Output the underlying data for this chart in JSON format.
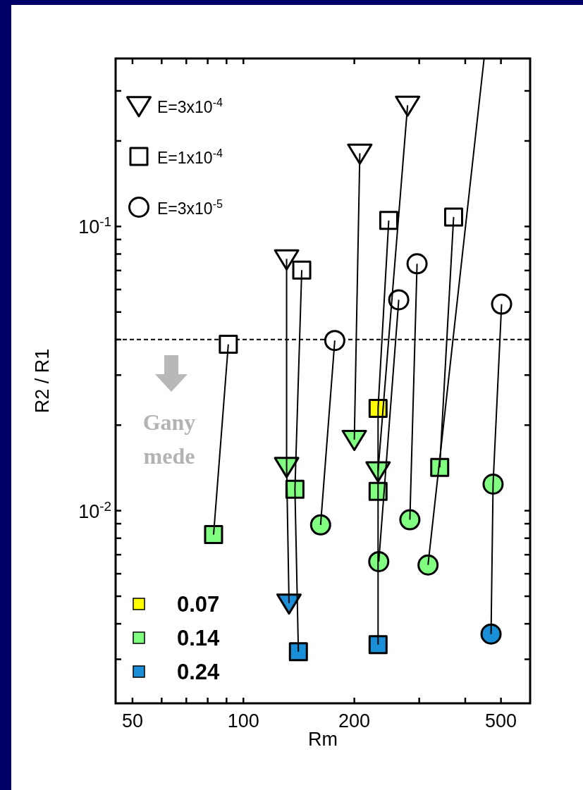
{
  "chart_data": {
    "type": "scatter",
    "xlabel": "Rm",
    "ylabel": "R2 / R1",
    "log": "xy",
    "legend": "left",
    "xlim": [
      45,
      600
    ],
    "ylim": [
      0.0021,
      0.39
    ],
    "xticks": [
      50,
      {
        "value": 60,
        "label": null
      },
      {
        "value": 70,
        "label": null
      },
      {
        "value": 80,
        "label": null
      },
      {
        "value": 90,
        "label": null
      },
      100,
      200,
      {
        "value": 300,
        "label": null
      },
      {
        "value": 400,
        "label": null
      },
      500
    ],
    "yticks": [
      {
        "value": 0.003,
        "label": null
      },
      {
        "value": 0.004,
        "label": null
      },
      {
        "value": 0.005,
        "label": null
      },
      {
        "value": 0.006,
        "label": null
      },
      {
        "value": 0.007,
        "label": null
      },
      {
        "value": 0.008,
        "label": null
      },
      {
        "value": 0.009,
        "label": null
      },
      {
        "value": 0.01,
        "label": "10$^{-2}$"
      },
      {
        "value": 0.02,
        "label": null
      },
      {
        "value": 0.03,
        "label": null
      },
      {
        "value": 0.04,
        "label": null
      },
      {
        "value": 0.05,
        "label": null
      },
      {
        "value": 0.06,
        "label": null
      },
      {
        "value": 0.07,
        "label": null
      },
      {
        "value": 0.08,
        "label": null
      },
      {
        "value": 0.09,
        "label": null
      },
      {
        "value": 0.1,
        "label": "10$^{-1}$"
      },
      {
        "value": 0.2,
        "label": null
      },
      {
        "value": 0.3,
        "label": null
      }
    ],
    "ref_lines": [
      {
        "axis": "y",
        "value": 0.04,
        "line_style": "dashed",
        "color": "#000000"
      }
    ],
    "annotations": [
      "Gany\nmede"
    ],
    "series": [
      {
        "name": "E=3x10$^{-4}$",
        "marker": "triangle",
        "color": "#ffffff",
        "x": [
          131,
          207,
          279
        ],
        "values": [
          0.0769,
          0.181,
          0.267
        ]
      },
      {
        "name": "E=1x10$^{-4}$",
        "marker": "square",
        "color": "#ffffff",
        "x": [
          91,
          144,
          248,
          372
        ],
        "values": [
          0.0385,
          0.0702,
          0.105,
          0.108
        ]
      },
      {
        "name": "E=3x10$^{-5}$",
        "marker": "circle",
        "color": "#ffffff",
        "x": [
          177,
          264,
          296,
          502
        ],
        "values": [
          0.0397,
          0.0552,
          0.0739,
          0.0533
        ]
      },
      {
        "name": "0.07",
        "marker": "square",
        "color": "#ffff00",
        "x": [
          232
        ],
        "values": [
          0.0229
        ]
      },
      {
        "name": "0.14",
        "marker": "square",
        "color": "#80ff80",
        "x": [
          83,
          138,
          232,
          341
        ],
        "values": [
          0.00824,
          0.0119,
          0.0117,
          0.0142
        ]
      },
      {
        "name": "0.24",
        "marker": "square",
        "color": "#1a8fd8",
        "x": [
          141,
          232
        ],
        "values": [
          0.00319,
          0.00338
        ]
      },
      {
        "marker": "triangle",
        "color": "#80ff80",
        "x": [
          131,
          200,
          232
        ],
        "values": [
          0.0143,
          0.0178,
          0.0138
        ]
      },
      {
        "marker": "circle",
        "color": "#80ff80",
        "x": [
          162,
          233,
          283,
          317,
          476
        ],
        "values": [
          0.00891,
          0.00662,
          0.00929,
          0.00644,
          0.0124
        ]
      },
      {
        "marker": "triangle",
        "color": "#1a8fd8",
        "x": [
          133
        ],
        "values": [
          0.00473
        ]
      },
      {
        "marker": "circle",
        "color": "#1a8fd8",
        "x": [
          470
        ],
        "values": [
          0.00368
        ]
      },
      {
        "type": "line",
        "marker": "none",
        "color": "#000000",
        "x": [
          131,
          131,
          133
        ],
        "values": [
          0.0769,
          0.0143,
          0.00473
        ]
      },
      {
        "type": "line",
        "marker": "none",
        "color": "#000000",
        "x": [
          144,
          138,
          141
        ],
        "values": [
          0.0702,
          0.0119,
          0.00319
        ]
      },
      {
        "type": "line",
        "marker": "none",
        "color": "#000000",
        "x": [
          91,
          83
        ],
        "values": [
          0.0385,
          0.00824
        ]
      },
      {
        "type": "line",
        "marker": "none",
        "color": "#000000",
        "x": [
          177,
          162
        ],
        "values": [
          0.0397,
          0.00891
        ]
      },
      {
        "type": "line",
        "marker": "none",
        "color": "#000000",
        "x": [
          207,
          200
        ],
        "values": [
          0.181,
          0.0178
        ]
      },
      {
        "type": "line",
        "marker": "none",
        "color": "#000000",
        "x": [
          279,
          232
        ],
        "values": [
          0.267,
          0.0138
        ]
      },
      {
        "type": "line",
        "marker": "none",
        "color": "#000000",
        "x": [
          248,
          232,
          232,
          232
        ],
        "values": [
          0.105,
          0.0229,
          0.0117,
          0.00338
        ]
      },
      {
        "type": "line",
        "marker": "none",
        "color": "#000000",
        "x": [
          264,
          233
        ],
        "values": [
          0.0552,
          0.00662
        ]
      },
      {
        "type": "line",
        "marker": "none",
        "color": "#000000",
        "x": [
          296,
          283
        ],
        "values": [
          0.0739,
          0.00929
        ]
      },
      {
        "type": "line",
        "marker": "none",
        "color": "#000000",
        "x": [
          372,
          341
        ],
        "values": [
          0.108,
          0.0142
        ]
      },
      {
        "type": "line",
        "marker": "none",
        "color": "#000000",
        "x": [
          450,
          317
        ],
        "values": [
          0.39,
          0.00644
        ]
      },
      {
        "type": "line",
        "marker": "none",
        "color": "#000000",
        "x": [
          502,
          476,
          470
        ],
        "values": [
          0.0533,
          0.0124,
          0.00368
        ]
      }
    ]
  }
}
